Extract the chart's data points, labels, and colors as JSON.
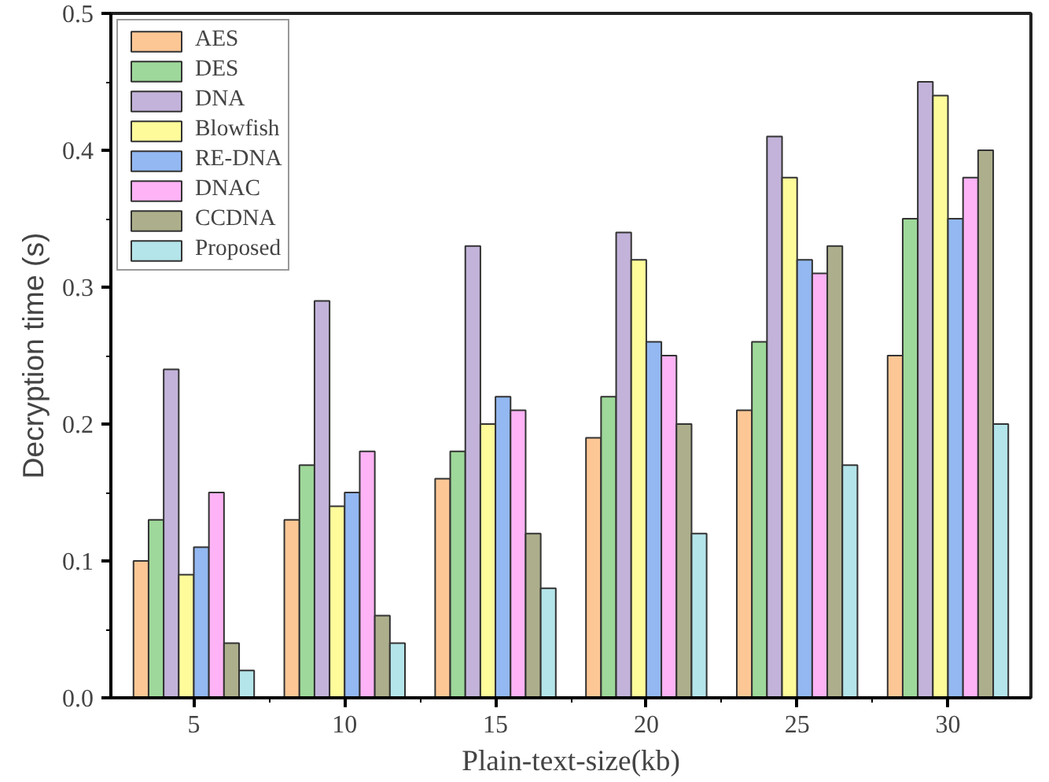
{
  "chart_data": {
    "type": "bar",
    "xlabel": "Plain-text-size(kb)",
    "ylabel": "Decryption time (s)",
    "categories": [
      "5",
      "10",
      "15",
      "20",
      "25",
      "30"
    ],
    "series": [
      {
        "name": "AES",
        "color": "#fdc795",
        "values": [
          0.1,
          0.13,
          0.16,
          0.19,
          0.21,
          0.25
        ]
      },
      {
        "name": "DES",
        "color": "#9ed89a",
        "values": [
          0.13,
          0.17,
          0.18,
          0.22,
          0.26,
          0.35
        ]
      },
      {
        "name": "DNA",
        "color": "#c3b3da",
        "values": [
          0.24,
          0.29,
          0.33,
          0.34,
          0.41,
          0.45
        ]
      },
      {
        "name": "Blowfish",
        "color": "#fdfb9a",
        "values": [
          0.09,
          0.14,
          0.2,
          0.32,
          0.38,
          0.44
        ]
      },
      {
        "name": "RE-DNA",
        "color": "#93b8f2",
        "values": [
          0.11,
          0.15,
          0.22,
          0.26,
          0.32,
          0.35
        ]
      },
      {
        "name": "DNAC",
        "color": "#fdb3f5",
        "values": [
          0.15,
          0.18,
          0.21,
          0.25,
          0.31,
          0.38
        ]
      },
      {
        "name": "CCDNA",
        "color": "#adaf8c",
        "values": [
          0.04,
          0.06,
          0.12,
          0.2,
          0.33,
          0.4
        ]
      },
      {
        "name": "Proposed",
        "color": "#b4e5ea",
        "values": [
          0.02,
          0.04,
          0.08,
          0.12,
          0.17,
          0.2
        ]
      }
    ],
    "ylim": [
      0,
      0.5
    ],
    "yticks": [
      {
        "value": 0,
        "label": "0.0"
      },
      0.1,
      0.2,
      0.3,
      0.4,
      0.5
    ],
    "grid": false,
    "legend": "top left"
  }
}
